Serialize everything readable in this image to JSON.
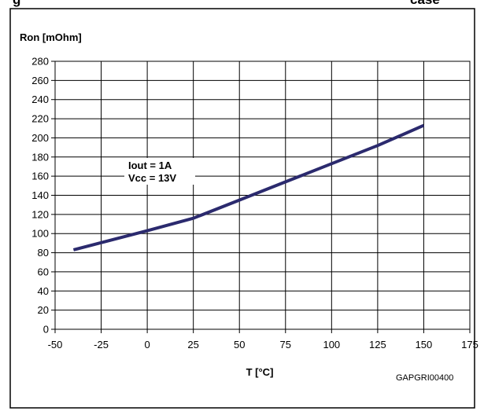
{
  "header": {
    "left_fragment": "g",
    "right_fragment": "case"
  },
  "chart_data": {
    "type": "line",
    "title": "",
    "ylabel": "Ron [mOhm]",
    "xlabel": "T [°C]",
    "xlim": [
      -50,
      175
    ],
    "ylim": [
      0,
      280
    ],
    "x_ticks": [
      -50,
      -25,
      0,
      25,
      50,
      75,
      100,
      125,
      150,
      175
    ],
    "y_ticks": [
      0,
      20,
      40,
      60,
      80,
      100,
      120,
      140,
      160,
      180,
      200,
      220,
      240,
      260,
      280
    ],
    "grid": true,
    "series": [
      {
        "x": [
          -40,
          0,
          25,
          50,
          75,
          100,
          125,
          150
        ],
        "y": [
          83,
          103,
          116,
          135,
          154,
          173,
          192,
          213
        ],
        "color": "#2b2a6e"
      }
    ],
    "annotations": [
      "Iout = 1A",
      "Vcc = 13V"
    ],
    "figure_code": "GAPGRI00400"
  }
}
